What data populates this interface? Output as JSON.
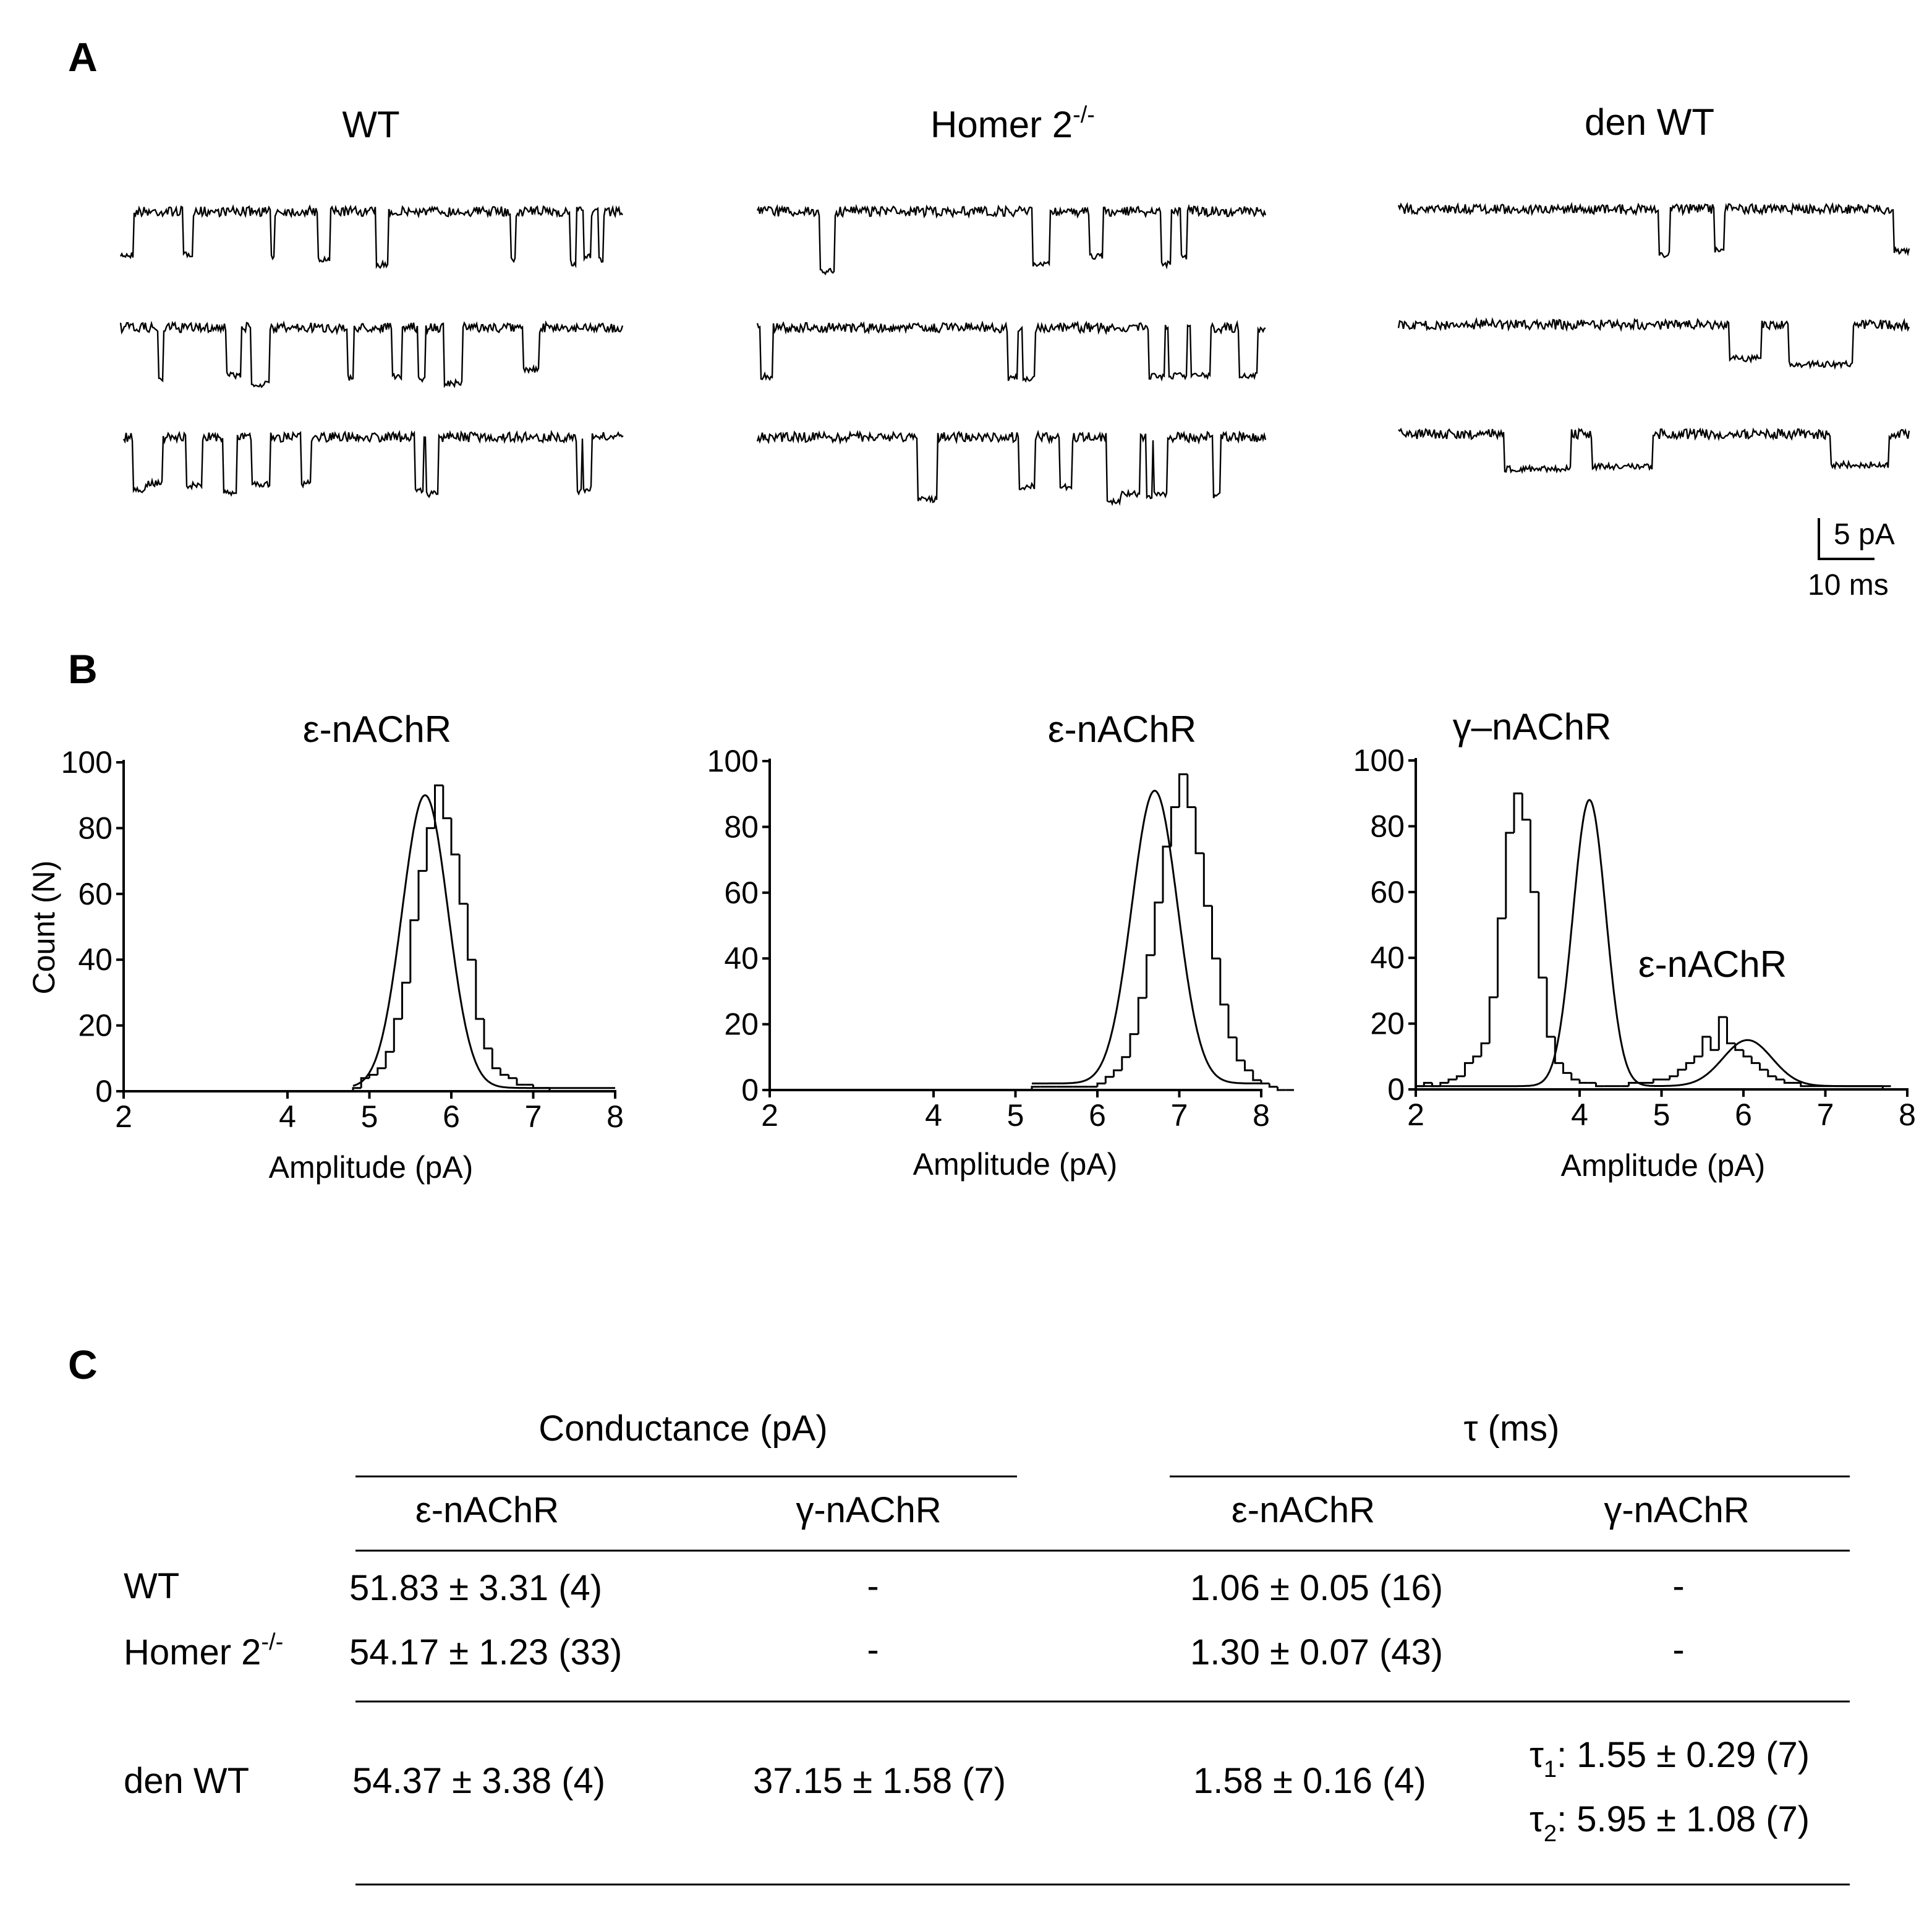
{
  "panels": {
    "a": "A",
    "b": "B",
    "c": "C"
  },
  "panel_a": {
    "groups": [
      {
        "name": "WT",
        "sup": ""
      },
      {
        "name": "Homer 2",
        "sup": "-/-"
      },
      {
        "name": "den WT",
        "sup": ""
      }
    ],
    "scale_bar": {
      "current": "5 pA",
      "time": "10 ms"
    }
  },
  "chart_data": [
    {
      "type": "bar",
      "title": "ε-nAChR",
      "xlabel": "Amplitude (pA)",
      "ylabel": "Count (N)",
      "xlim": [
        2,
        8
      ],
      "ylim": [
        0,
        100
      ],
      "xticks": [
        2,
        4,
        5,
        6,
        7,
        8
      ],
      "yticks": [
        0,
        20,
        40,
        60,
        80,
        100
      ],
      "bin_width": 0.1,
      "bin_start": 4.8,
      "counts": [
        1,
        4,
        5,
        7,
        12,
        22,
        33,
        52,
        67,
        80,
        93,
        83,
        72,
        57,
        40,
        22,
        13,
        7,
        5,
        4,
        2,
        2,
        1,
        1,
        0,
        0,
        0,
        0
      ],
      "fit": {
        "components": [
          {
            "amplitude": 89,
            "mean": 5.68,
            "sd": 0.28
          }
        ],
        "baseline": 1,
        "range": [
          4.8,
          8
        ]
      }
    },
    {
      "type": "bar",
      "title": "ε-nAChR",
      "xlabel": "Amplitude (pA)",
      "ylabel": "",
      "xlim": [
        2,
        8
      ],
      "ylim": [
        0,
        100
      ],
      "xticks": [
        2,
        4,
        5,
        6,
        7,
        8
      ],
      "yticks": [
        0,
        20,
        40,
        60,
        80,
        100
      ],
      "bin_width": 0.1,
      "bin_start": 5.2,
      "counts": [
        1,
        1,
        1,
        1,
        1,
        1,
        1,
        1,
        2,
        4,
        6,
        10,
        17,
        28,
        41,
        57,
        74,
        86,
        96,
        86,
        72,
        56,
        40,
        26,
        16,
        9,
        6,
        3,
        2,
        1,
        0,
        0
      ],
      "fit": {
        "components": [
          {
            "amplitude": 89,
            "mean": 6.7,
            "sd": 0.28
          }
        ],
        "baseline": 2,
        "range": [
          5.2,
          8
        ]
      }
    },
    {
      "type": "bar",
      "title": "γ–nAChR",
      "annotation": "ε-nAChR",
      "xlabel": "Amplitude (pA)",
      "ylabel": "",
      "xlim": [
        2,
        8
      ],
      "ylim": [
        0,
        100
      ],
      "xticks": [
        2,
        4,
        5,
        6,
        7,
        8
      ],
      "yticks": [
        0,
        20,
        40,
        60,
        80,
        100
      ],
      "bin_width": 0.1,
      "bin_start": 2.0,
      "counts": [
        1,
        2,
        1,
        2,
        3,
        4,
        8,
        10,
        14,
        28,
        52,
        78,
        90,
        82,
        60,
        34,
        16,
        8,
        5,
        3,
        2,
        2,
        1,
        1,
        1,
        1,
        2,
        2,
        2,
        3,
        3,
        4,
        6,
        8,
        10,
        16,
        12,
        22,
        14,
        12,
        10,
        8,
        6,
        4,
        3,
        2,
        2,
        1,
        1,
        1,
        1,
        1,
        1,
        1,
        1,
        1,
        1,
        0
      ],
      "fit": {
        "components": [
          {
            "amplitude": 87,
            "mean": 4.12,
            "sd": 0.2
          },
          {
            "amplitude": 14,
            "mean": 6.05,
            "sd": 0.3
          }
        ],
        "baseline": 1,
        "range": [
          2.0,
          7.8
        ]
      }
    }
  ],
  "table": {
    "group_headers": {
      "conductance": "Conductance (pA)",
      "tau": "τ (ms)"
    },
    "sub_headers": [
      "ε-nAChR",
      "γ-nAChR",
      "ε-nAChR",
      "γ-nAChR"
    ],
    "rows": [
      {
        "label": "WT",
        "sup": "",
        "cells": [
          "51.83 ± 3.31 (4)",
          "-",
          "1.06 ± 0.05  (16)",
          "-"
        ]
      },
      {
        "label": "Homer 2",
        "sup": "-/-",
        "cells": [
          "54.17 ± 1.23 (33)",
          "-",
          "1.30 ± 0.07 (43)",
          "-"
        ]
      },
      {
        "label": "den WT",
        "sup": "",
        "cells": [
          "54.37 ± 3.38 (4)",
          "37.15 ± 1.58 (7)",
          "1.58 ± 0.16 (4)",
          ""
        ]
      }
    ],
    "tau_components": [
      {
        "sym": "τ",
        "sub": "1",
        "value": ": 1.55 ± 0.29 (7)"
      },
      {
        "sym": "τ",
        "sub": "2",
        "value": ": 5.95 ± 1.08 (7)"
      }
    ]
  }
}
